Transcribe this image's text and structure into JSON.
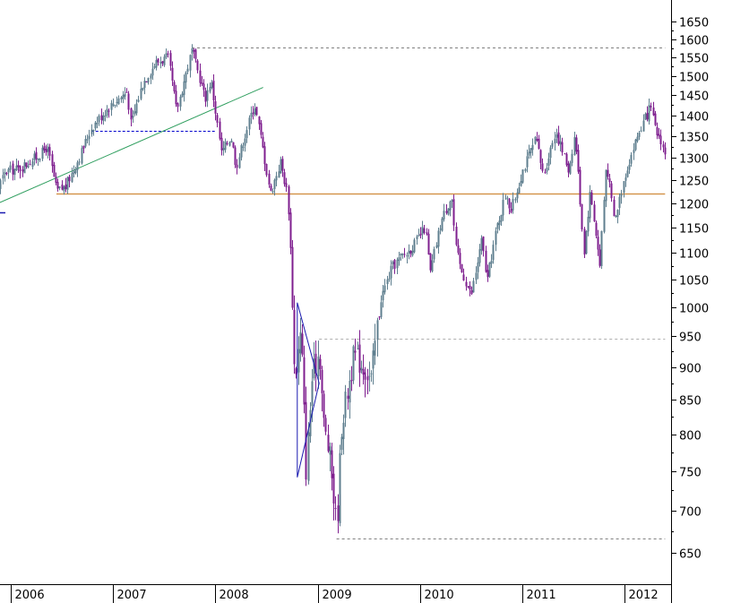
{
  "chart_data": {
    "type": "candlestick",
    "title": "",
    "xlabel": "",
    "ylabel": "",
    "y_axis_side": "right",
    "y_scale": "log",
    "ylim": [
      610,
      1720
    ],
    "x_range": [
      "2005-09-01",
      "2012-05-25"
    ],
    "y_ticks": [
      650,
      700,
      750,
      800,
      850,
      900,
      950,
      1000,
      1050,
      1100,
      1150,
      1200,
      1250,
      1300,
      1350,
      1400,
      1450,
      1500,
      1550,
      1600,
      1650
    ],
    "y_tick_labels": [
      "650",
      "700",
      "750",
      "800",
      "850",
      "900",
      "950",
      "1000",
      "1050",
      "1100",
      "1150",
      "1200",
      "1250",
      "1300",
      "1350",
      "1400",
      "1450",
      "1500",
      "1550",
      "1600",
      "1650"
    ],
    "x_ticks": [
      "2006-01-01",
      "2007-01-01",
      "2008-01-01",
      "2009-01-01",
      "2010-01-01",
      "2011-01-01",
      "2012-01-01"
    ],
    "x_tick_labels": [
      "2006",
      "2007",
      "2008",
      "2009",
      "2010",
      "2011",
      "2012"
    ],
    "colors": {
      "up": "#5f7f8f",
      "down": "#7f1f8f",
      "support_line": "#d08a3a",
      "trend_line": "#2e9e5e",
      "triangle": "#1a1ab0",
      "dashed_resistance": "#808080",
      "dashed_blue": "#0000cc"
    },
    "weekly_close_path": [
      [
        "2005-09-01",
        1230
      ],
      [
        "2005-10-20",
        1200
      ],
      [
        "2005-12-15",
        1270
      ],
      [
        "2006-02-01",
        1275
      ],
      [
        "2006-04-20",
        1310
      ],
      [
        "2006-05-10",
        1325
      ],
      [
        "2006-06-13",
        1225
      ],
      [
        "2006-07-15",
        1235
      ],
      [
        "2006-09-01",
        1300
      ],
      [
        "2006-10-15",
        1370
      ],
      [
        "2006-12-15",
        1420
      ],
      [
        "2007-02-20",
        1460
      ],
      [
        "2007-03-05",
        1375
      ],
      [
        "2007-04-15",
        1480
      ],
      [
        "2007-06-01",
        1535
      ],
      [
        "2007-07-15",
        1550
      ],
      [
        "2007-08-15",
        1410
      ],
      [
        "2007-10-09",
        1570
      ],
      [
        "2007-11-25",
        1440
      ],
      [
        "2007-12-15",
        1490
      ],
      [
        "2008-01-22",
        1310
      ],
      [
        "2008-02-25",
        1350
      ],
      [
        "2008-03-15",
        1280
      ],
      [
        "2008-05-19",
        1430
      ],
      [
        "2008-07-15",
        1220
      ],
      [
        "2008-08-20",
        1290
      ],
      [
        "2008-09-10",
        1230
      ],
      [
        "2008-09-20",
        1170
      ],
      [
        "2008-10-10",
        880
      ],
      [
        "2008-11-01",
        960
      ],
      [
        "2008-11-20",
        750
      ],
      [
        "2008-12-10",
        880
      ],
      [
        "2009-01-06",
        930
      ],
      [
        "2009-01-20",
        820
      ],
      [
        "2009-02-15",
        760
      ],
      [
        "2009-03-09",
        676
      ],
      [
        "2009-03-25",
        810
      ],
      [
        "2009-04-15",
        860
      ],
      [
        "2009-05-10",
        920
      ],
      [
        "2009-06-15",
        900
      ],
      [
        "2009-07-10",
        880
      ],
      [
        "2009-08-10",
        1010
      ],
      [
        "2009-09-20",
        1070
      ],
      [
        "2009-10-20",
        1090
      ],
      [
        "2009-11-15",
        1100
      ],
      [
        "2009-12-15",
        1120
      ],
      [
        "2010-01-19",
        1150
      ],
      [
        "2010-02-05",
        1060
      ],
      [
        "2010-03-15",
        1160
      ],
      [
        "2010-04-23",
        1217
      ],
      [
        "2010-05-07",
        1110
      ],
      [
        "2010-05-25",
        1070
      ],
      [
        "2010-07-02",
        1020
      ],
      [
        "2010-08-09",
        1125
      ],
      [
        "2010-08-27",
        1045
      ],
      [
        "2010-10-01",
        1150
      ],
      [
        "2010-11-05",
        1225
      ],
      [
        "2010-11-20",
        1180
      ],
      [
        "2011-01-01",
        1270
      ],
      [
        "2011-02-18",
        1343
      ],
      [
        "2011-03-16",
        1260
      ],
      [
        "2011-04-29",
        1363
      ],
      [
        "2011-06-15",
        1270
      ],
      [
        "2011-07-07",
        1355
      ],
      [
        "2011-08-08",
        1100
      ],
      [
        "2011-08-31",
        1225
      ],
      [
        "2011-10-04",
        1075
      ],
      [
        "2011-10-27",
        1290
      ],
      [
        "2011-11-25",
        1160
      ],
      [
        "2012-01-01",
        1260
      ],
      [
        "2012-02-15",
        1350
      ],
      [
        "2012-04-02",
        1420
      ],
      [
        "2012-04-20",
        1360
      ],
      [
        "2012-05-10",
        1340
      ],
      [
        "2012-05-25",
        1300
      ]
    ],
    "annotations": {
      "horizontal_support": {
        "y": 1220,
        "x_from": "2006-06-13",
        "x_to": "2012-05-25"
      },
      "resistance_top": {
        "y": 1576,
        "x_from": "2007-10-09",
        "x_to": "2012-05-25"
      },
      "resistance_mid": {
        "y": 946,
        "x_from": "2009-01-06",
        "x_to": "2012-05-25"
      },
      "support_bottom": {
        "y": 667,
        "x_from": "2009-03-09",
        "x_to": "2012-05-25"
      },
      "blue_dashed": {
        "y": 1363,
        "x_from": "2006-10-15",
        "x_to": "2008-01-01"
      },
      "trend_line": {
        "from": [
          "2005-09-01",
          1180
        ],
        "to": [
          "2008-06-20",
          1470
        ]
      },
      "triangle": [
        [
          "2008-10-20",
          1008
        ],
        [
          "2009-01-06",
          875
        ],
        [
          "2008-10-20",
          742
        ]
      ]
    }
  }
}
